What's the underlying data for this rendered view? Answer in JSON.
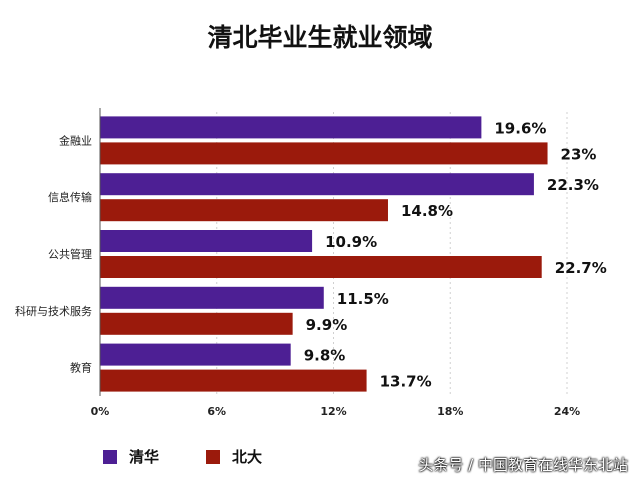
{
  "chart_data": {
    "type": "bar",
    "orientation": "horizontal",
    "title": "清北毕业生就业领域",
    "categories": [
      "金融业",
      "信息传输",
      "公共管理",
      "科研与技术服务",
      "教育"
    ],
    "series": [
      {
        "name": "清华",
        "values": [
          19.6,
          22.3,
          10.9,
          11.5,
          9.8
        ],
        "labels": [
          "19.6%",
          "22.3%",
          "10.9%",
          "11.5%",
          "9.8%"
        ],
        "color": "#4d1f94"
      },
      {
        "name": "北大",
        "values": [
          23,
          14.8,
          22.7,
          9.9,
          13.7
        ],
        "labels": [
          "23%",
          "14.8%",
          "22.7%",
          "9.9%",
          "13.7%"
        ],
        "color": "#9b1a0c"
      }
    ],
    "xlim": [
      0,
      24
    ],
    "xticks": [
      "0%",
      "6%",
      "12%",
      "18%",
      "24%"
    ],
    "xlabel": "",
    "ylabel": "",
    "grid": "vertical-dashed",
    "legend_position": "bottom-left"
  },
  "watermark": "头条号 / 中国教育在线华东北站"
}
